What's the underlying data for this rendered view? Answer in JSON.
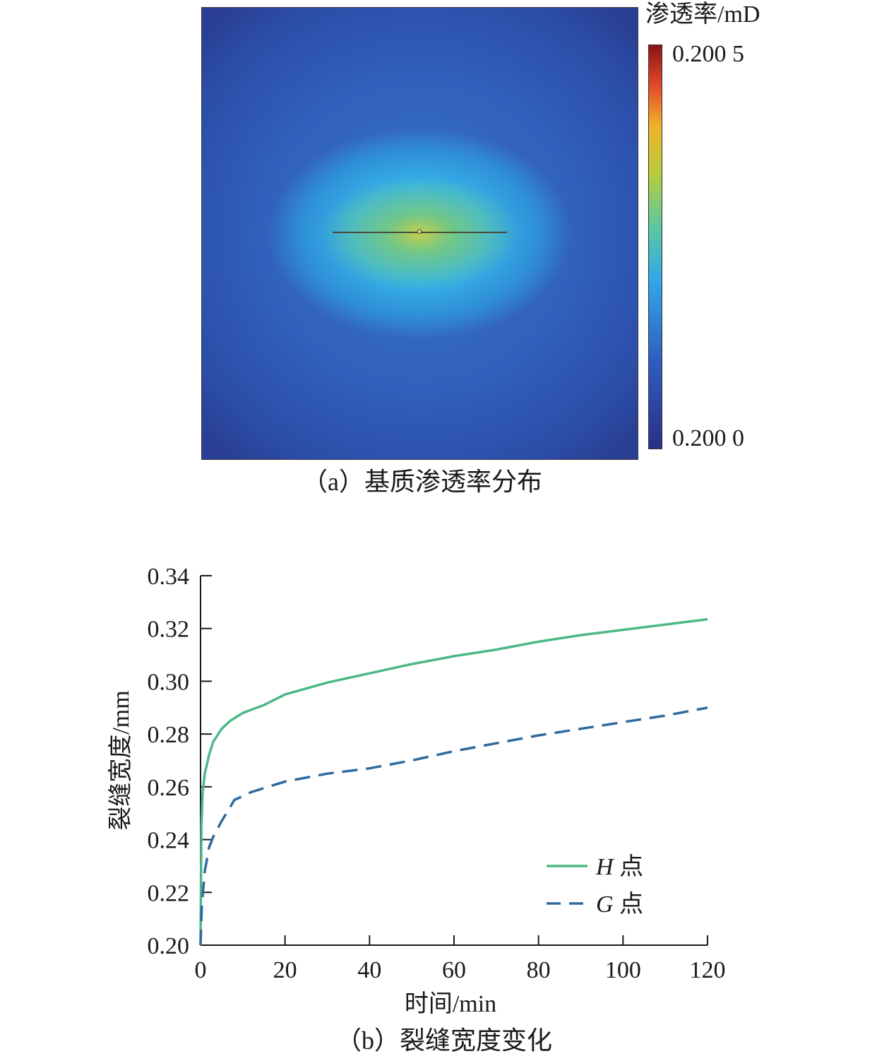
{
  "panel_a": {
    "colorbar_title": "渗透率/mD",
    "colorbar_max": "0.200 5",
    "colorbar_min": "0.200 0",
    "caption": "（a）基质渗透率分布"
  },
  "panel_b": {
    "caption": "（b）裂缝宽度变化"
  },
  "chart_data": {
    "type": "line",
    "xlabel": "时间/min",
    "ylabel": "裂缝宽度/mm",
    "xlim": [
      0,
      120
    ],
    "ylim": [
      0.2,
      0.34
    ],
    "xticks": [
      "0",
      "20",
      "40",
      "60",
      "80",
      "100",
      "120"
    ],
    "yticks": [
      "0.20",
      "0.22",
      "0.24",
      "0.26",
      "0.28",
      "0.30",
      "0.32",
      "0.34"
    ],
    "legend_position": "bottom-right",
    "grid": false,
    "series": [
      {
        "name": "H 点",
        "legend_italic": "H",
        "legend_suffix": " 点",
        "color": "#4db886",
        "dash": "solid",
        "x": [
          0,
          0.2,
          0.5,
          1,
          2,
          3,
          5,
          7,
          10,
          15,
          20,
          30,
          40,
          50,
          60,
          70,
          80,
          90,
          100,
          110,
          120
        ],
        "y": [
          0.2,
          0.245,
          0.258,
          0.265,
          0.272,
          0.277,
          0.282,
          0.285,
          0.288,
          0.291,
          0.295,
          0.2995,
          0.303,
          0.3065,
          0.3095,
          0.312,
          0.315,
          0.3175,
          0.3195,
          0.3215,
          0.3235
        ]
      },
      {
        "name": "G 点",
        "legend_italic": "G",
        "legend_suffix": " 点",
        "color": "#2e6a9e",
        "dash": "dashed",
        "x": [
          0,
          0.3,
          1,
          2,
          3,
          5,
          8,
          12,
          20,
          30,
          40,
          50,
          60,
          70,
          80,
          90,
          100,
          110,
          120
        ],
        "y": [
          0.2,
          0.215,
          0.228,
          0.237,
          0.241,
          0.247,
          0.255,
          0.258,
          0.262,
          0.265,
          0.267,
          0.27,
          0.2735,
          0.2765,
          0.2795,
          0.282,
          0.2845,
          0.287,
          0.29
        ]
      }
    ]
  }
}
